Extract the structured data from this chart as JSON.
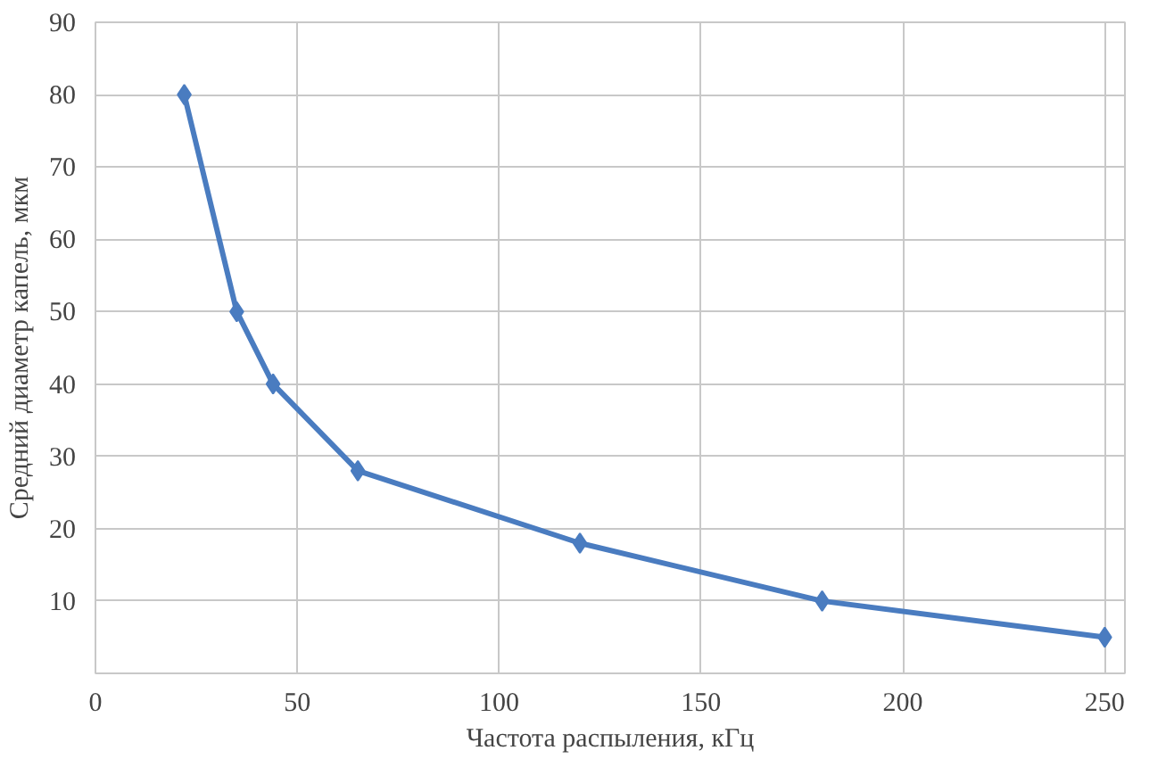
{
  "chart_data": {
    "type": "line",
    "xlabel": "Частота распыления, кГц",
    "ylabel": "Средний диаметр капель, мкм",
    "x": [
      22,
      35,
      44,
      65,
      120,
      180,
      250
    ],
    "series": [
      {
        "color": "#4a7cc0",
        "values": [
          80,
          50,
          40,
          28,
          18,
          10,
          5
        ]
      }
    ],
    "xlim": [
      0,
      255
    ],
    "ylim": [
      0,
      90
    ],
    "xticks": [
      0,
      50,
      100,
      150,
      200,
      250
    ],
    "yticks": [
      10,
      20,
      30,
      40,
      50,
      60,
      70,
      80,
      90
    ],
    "grid": true,
    "marker": "diamond",
    "line_style": "solid"
  }
}
